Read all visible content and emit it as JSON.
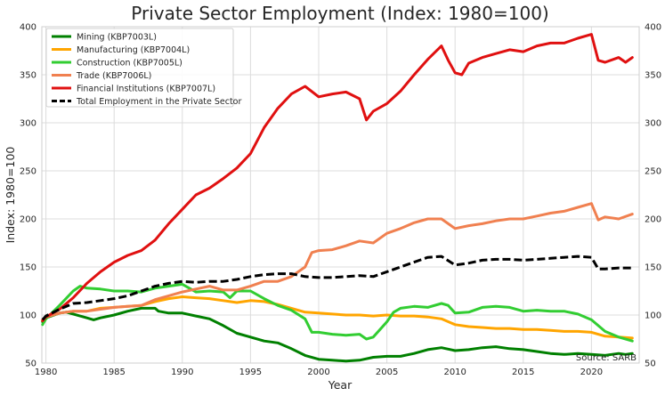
{
  "chart_data": {
    "type": "line",
    "title": "Private Sector Employment (Index: 1980=100)",
    "xlabel": "Year",
    "ylabel": "Index: 1980=100",
    "xlim": [
      1979.7,
      2023.5
    ],
    "ylim": [
      50,
      400
    ],
    "xticks": [
      1980,
      1985,
      1990,
      1995,
      2000,
      2005,
      2010,
      2015,
      2020
    ],
    "yticks": [
      50,
      100,
      150,
      200,
      250,
      300,
      350,
      400
    ],
    "grid": true,
    "legend_position": "top-left",
    "source_note": "Source: SARB",
    "series": [
      {
        "name": "Mining (KBP7003L)",
        "color": "#008000",
        "dashed": false,
        "points": [
          [
            1979.75,
            93
          ],
          [
            1980,
            97
          ],
          [
            1981,
            102
          ],
          [
            1981.5,
            103
          ],
          [
            1982,
            101
          ],
          [
            1983,
            97
          ],
          [
            1983.5,
            95
          ],
          [
            1984,
            97
          ],
          [
            1985,
            100
          ],
          [
            1986,
            104
          ],
          [
            1987,
            107
          ],
          [
            1988,
            107
          ],
          [
            1988.25,
            104
          ],
          [
            1989,
            102
          ],
          [
            1990,
            102
          ],
          [
            1991,
            99
          ],
          [
            1992,
            96
          ],
          [
            1993,
            89
          ],
          [
            1994,
            81
          ],
          [
            1995,
            77
          ],
          [
            1996,
            73
          ],
          [
            1997,
            71
          ],
          [
            1998,
            65
          ],
          [
            1999,
            58
          ],
          [
            2000,
            54
          ],
          [
            2001,
            53
          ],
          [
            2002,
            52
          ],
          [
            2003,
            53
          ],
          [
            2004,
            56
          ],
          [
            2005,
            57
          ],
          [
            2006,
            57
          ],
          [
            2007,
            60
          ],
          [
            2008,
            64
          ],
          [
            2009,
            66
          ],
          [
            2010,
            63
          ],
          [
            2011,
            64
          ],
          [
            2012,
            66
          ],
          [
            2013,
            67
          ],
          [
            2014,
            65
          ],
          [
            2015,
            64
          ],
          [
            2016,
            62
          ],
          [
            2017,
            60
          ],
          [
            2018,
            59
          ],
          [
            2019,
            60
          ],
          [
            2020,
            59
          ],
          [
            2021,
            58
          ],
          [
            2022,
            60
          ],
          [
            2022.5,
            59
          ],
          [
            2023,
            60
          ]
        ]
      },
      {
        "name": "Manufacturing (KBP7004L)",
        "color": "#FFA500",
        "dashed": false,
        "points": [
          [
            1979.75,
            94
          ],
          [
            1980,
            98
          ],
          [
            1981,
            102
          ],
          [
            1982,
            104
          ],
          [
            1983,
            104
          ],
          [
            1984,
            107
          ],
          [
            1985,
            108
          ],
          [
            1986,
            109
          ],
          [
            1987,
            110
          ],
          [
            1988,
            114
          ],
          [
            1989,
            117
          ],
          [
            1990,
            119
          ],
          [
            1991,
            118
          ],
          [
            1992,
            117
          ],
          [
            1993,
            115
          ],
          [
            1994,
            113
          ],
          [
            1995,
            115
          ],
          [
            1996,
            114
          ],
          [
            1997,
            111
          ],
          [
            1998,
            107
          ],
          [
            1999,
            103
          ],
          [
            2000,
            102
          ],
          [
            2001,
            101
          ],
          [
            2002,
            100
          ],
          [
            2003,
            100
          ],
          [
            2004,
            99
          ],
          [
            2005,
            100
          ],
          [
            2006,
            99
          ],
          [
            2007,
            99
          ],
          [
            2008,
            98
          ],
          [
            2009,
            96
          ],
          [
            2010,
            90
          ],
          [
            2011,
            88
          ],
          [
            2012,
            87
          ],
          [
            2013,
            86
          ],
          [
            2014,
            86
          ],
          [
            2015,
            85
          ],
          [
            2016,
            85
          ],
          [
            2017,
            84
          ],
          [
            2018,
            83
          ],
          [
            2019,
            83
          ],
          [
            2020,
            82
          ],
          [
            2021,
            78
          ],
          [
            2022,
            77
          ],
          [
            2023,
            76
          ]
        ]
      },
      {
        "name": "Construction (KBP7005L)",
        "color": "#32CD32",
        "dashed": false,
        "points": [
          [
            1979.75,
            90
          ],
          [
            1980,
            96
          ],
          [
            1981,
            110
          ],
          [
            1982,
            125
          ],
          [
            1982.5,
            130
          ],
          [
            1983,
            128
          ],
          [
            1984,
            127
          ],
          [
            1985,
            125
          ],
          [
            1986,
            125
          ],
          [
            1987,
            124
          ],
          [
            1988,
            128
          ],
          [
            1989,
            130
          ],
          [
            1990,
            132
          ],
          [
            1991,
            124
          ],
          [
            1992,
            125
          ],
          [
            1993,
            124
          ],
          [
            1993.5,
            118
          ],
          [
            1994,
            125
          ],
          [
            1995,
            125
          ],
          [
            1996,
            117
          ],
          [
            1997,
            110
          ],
          [
            1998,
            105
          ],
          [
            1999,
            96
          ],
          [
            1999.5,
            82
          ],
          [
            2000,
            82
          ],
          [
            2001,
            80
          ],
          [
            2002,
            79
          ],
          [
            2003,
            80
          ],
          [
            2003.5,
            75
          ],
          [
            2004,
            77
          ],
          [
            2004.5,
            85
          ],
          [
            2005,
            93
          ],
          [
            2005.5,
            103
          ],
          [
            2006,
            107
          ],
          [
            2007,
            109
          ],
          [
            2008,
            108
          ],
          [
            2009,
            112
          ],
          [
            2009.5,
            110
          ],
          [
            2010,
            102
          ],
          [
            2011,
            103
          ],
          [
            2012,
            108
          ],
          [
            2013,
            109
          ],
          [
            2014,
            108
          ],
          [
            2015,
            104
          ],
          [
            2016,
            105
          ],
          [
            2017,
            104
          ],
          [
            2018,
            104
          ],
          [
            2019,
            101
          ],
          [
            2020,
            95
          ],
          [
            2021,
            83
          ],
          [
            2022,
            77
          ],
          [
            2023,
            73
          ]
        ]
      },
      {
        "name": "Trade (KBP7006L)",
        "color": "#F08050",
        "dashed": false,
        "points": [
          [
            1979.75,
            95
          ],
          [
            1980,
            98
          ],
          [
            1981,
            102
          ],
          [
            1982,
            104
          ],
          [
            1983,
            104
          ],
          [
            1984,
            106
          ],
          [
            1985,
            108
          ],
          [
            1986,
            109
          ],
          [
            1987,
            110
          ],
          [
            1988,
            116
          ],
          [
            1989,
            120
          ],
          [
            1990,
            124
          ],
          [
            1991,
            127
          ],
          [
            1992,
            130
          ],
          [
            1993,
            126
          ],
          [
            1994,
            126
          ],
          [
            1995,
            130
          ],
          [
            1996,
            135
          ],
          [
            1997,
            135
          ],
          [
            1998,
            140
          ],
          [
            1999,
            150
          ],
          [
            1999.5,
            165
          ],
          [
            2000,
            167
          ],
          [
            2001,
            168
          ],
          [
            2002,
            172
          ],
          [
            2003,
            177
          ],
          [
            2004,
            175
          ],
          [
            2005,
            185
          ],
          [
            2006,
            190
          ],
          [
            2007,
            196
          ],
          [
            2008,
            200
          ],
          [
            2009,
            200
          ],
          [
            2010,
            190
          ],
          [
            2011,
            193
          ],
          [
            2012,
            195
          ],
          [
            2013,
            198
          ],
          [
            2014,
            200
          ],
          [
            2015,
            200
          ],
          [
            2016,
            203
          ],
          [
            2017,
            206
          ],
          [
            2018,
            208
          ],
          [
            2019,
            212
          ],
          [
            2020,
            216
          ],
          [
            2020.5,
            199
          ],
          [
            2021,
            202
          ],
          [
            2022,
            200
          ],
          [
            2023,
            205
          ]
        ]
      },
      {
        "name": "Financial Institutions (KBP7007L)",
        "color": "#E01010",
        "dashed": false,
        "points": [
          [
            1979.75,
            94
          ],
          [
            1980,
            98
          ],
          [
            1981,
            106
          ],
          [
            1982,
            118
          ],
          [
            1983,
            133
          ],
          [
            1984,
            145
          ],
          [
            1985,
            155
          ],
          [
            1986,
            162
          ],
          [
            1987,
            167
          ],
          [
            1988,
            178
          ],
          [
            1989,
            195
          ],
          [
            1990,
            210
          ],
          [
            1991,
            225
          ],
          [
            1992,
            232
          ],
          [
            1993,
            242
          ],
          [
            1994,
            253
          ],
          [
            1995,
            268
          ],
          [
            1996,
            295
          ],
          [
            1997,
            315
          ],
          [
            1998,
            330
          ],
          [
            1999,
            338
          ],
          [
            2000,
            327
          ],
          [
            2001,
            330
          ],
          [
            2002,
            332
          ],
          [
            2003,
            325
          ],
          [
            2003.5,
            303
          ],
          [
            2004,
            312
          ],
          [
            2005,
            320
          ],
          [
            2006,
            333
          ],
          [
            2007,
            350
          ],
          [
            2008,
            366
          ],
          [
            2009,
            380
          ],
          [
            2009.5,
            365
          ],
          [
            2010,
            352
          ],
          [
            2010.5,
            350
          ],
          [
            2011,
            362
          ],
          [
            2012,
            368
          ],
          [
            2013,
            372
          ],
          [
            2014,
            376
          ],
          [
            2015,
            374
          ],
          [
            2016,
            380
          ],
          [
            2017,
            383
          ],
          [
            2018,
            383
          ],
          [
            2019,
            388
          ],
          [
            2020,
            392
          ],
          [
            2020.5,
            365
          ],
          [
            2021,
            363
          ],
          [
            2022,
            368
          ],
          [
            2022.5,
            363
          ],
          [
            2023,
            368
          ]
        ]
      },
      {
        "name": "Total Employment in the Private Sector",
        "color": "#000000",
        "dashed": true,
        "points": [
          [
            1979.75,
            95
          ],
          [
            1980,
            99
          ],
          [
            1981,
            106
          ],
          [
            1982,
            112
          ],
          [
            1983,
            113
          ],
          [
            1984,
            115
          ],
          [
            1985,
            117
          ],
          [
            1986,
            120
          ],
          [
            1987,
            125
          ],
          [
            1988,
            130
          ],
          [
            1989,
            133
          ],
          [
            1990,
            135
          ],
          [
            1991,
            134
          ],
          [
            1992,
            135
          ],
          [
            1993,
            135
          ],
          [
            1994,
            137
          ],
          [
            1995,
            140
          ],
          [
            1996,
            142
          ],
          [
            1997,
            143
          ],
          [
            1998,
            143
          ],
          [
            1999,
            140
          ],
          [
            2000,
            139
          ],
          [
            2001,
            139
          ],
          [
            2002,
            140
          ],
          [
            2003,
            141
          ],
          [
            2004,
            140
          ],
          [
            2005,
            145
          ],
          [
            2006,
            150
          ],
          [
            2007,
            155
          ],
          [
            2008,
            160
          ],
          [
            2009,
            161
          ],
          [
            2010,
            152
          ],
          [
            2011,
            154
          ],
          [
            2012,
            157
          ],
          [
            2013,
            158
          ],
          [
            2014,
            158
          ],
          [
            2015,
            157
          ],
          [
            2016,
            158
          ],
          [
            2017,
            159
          ],
          [
            2018,
            160
          ],
          [
            2019,
            161
          ],
          [
            2020,
            160
          ],
          [
            2020.5,
            148
          ],
          [
            2021,
            148
          ],
          [
            2022,
            149
          ],
          [
            2023,
            149
          ]
        ]
      }
    ]
  }
}
